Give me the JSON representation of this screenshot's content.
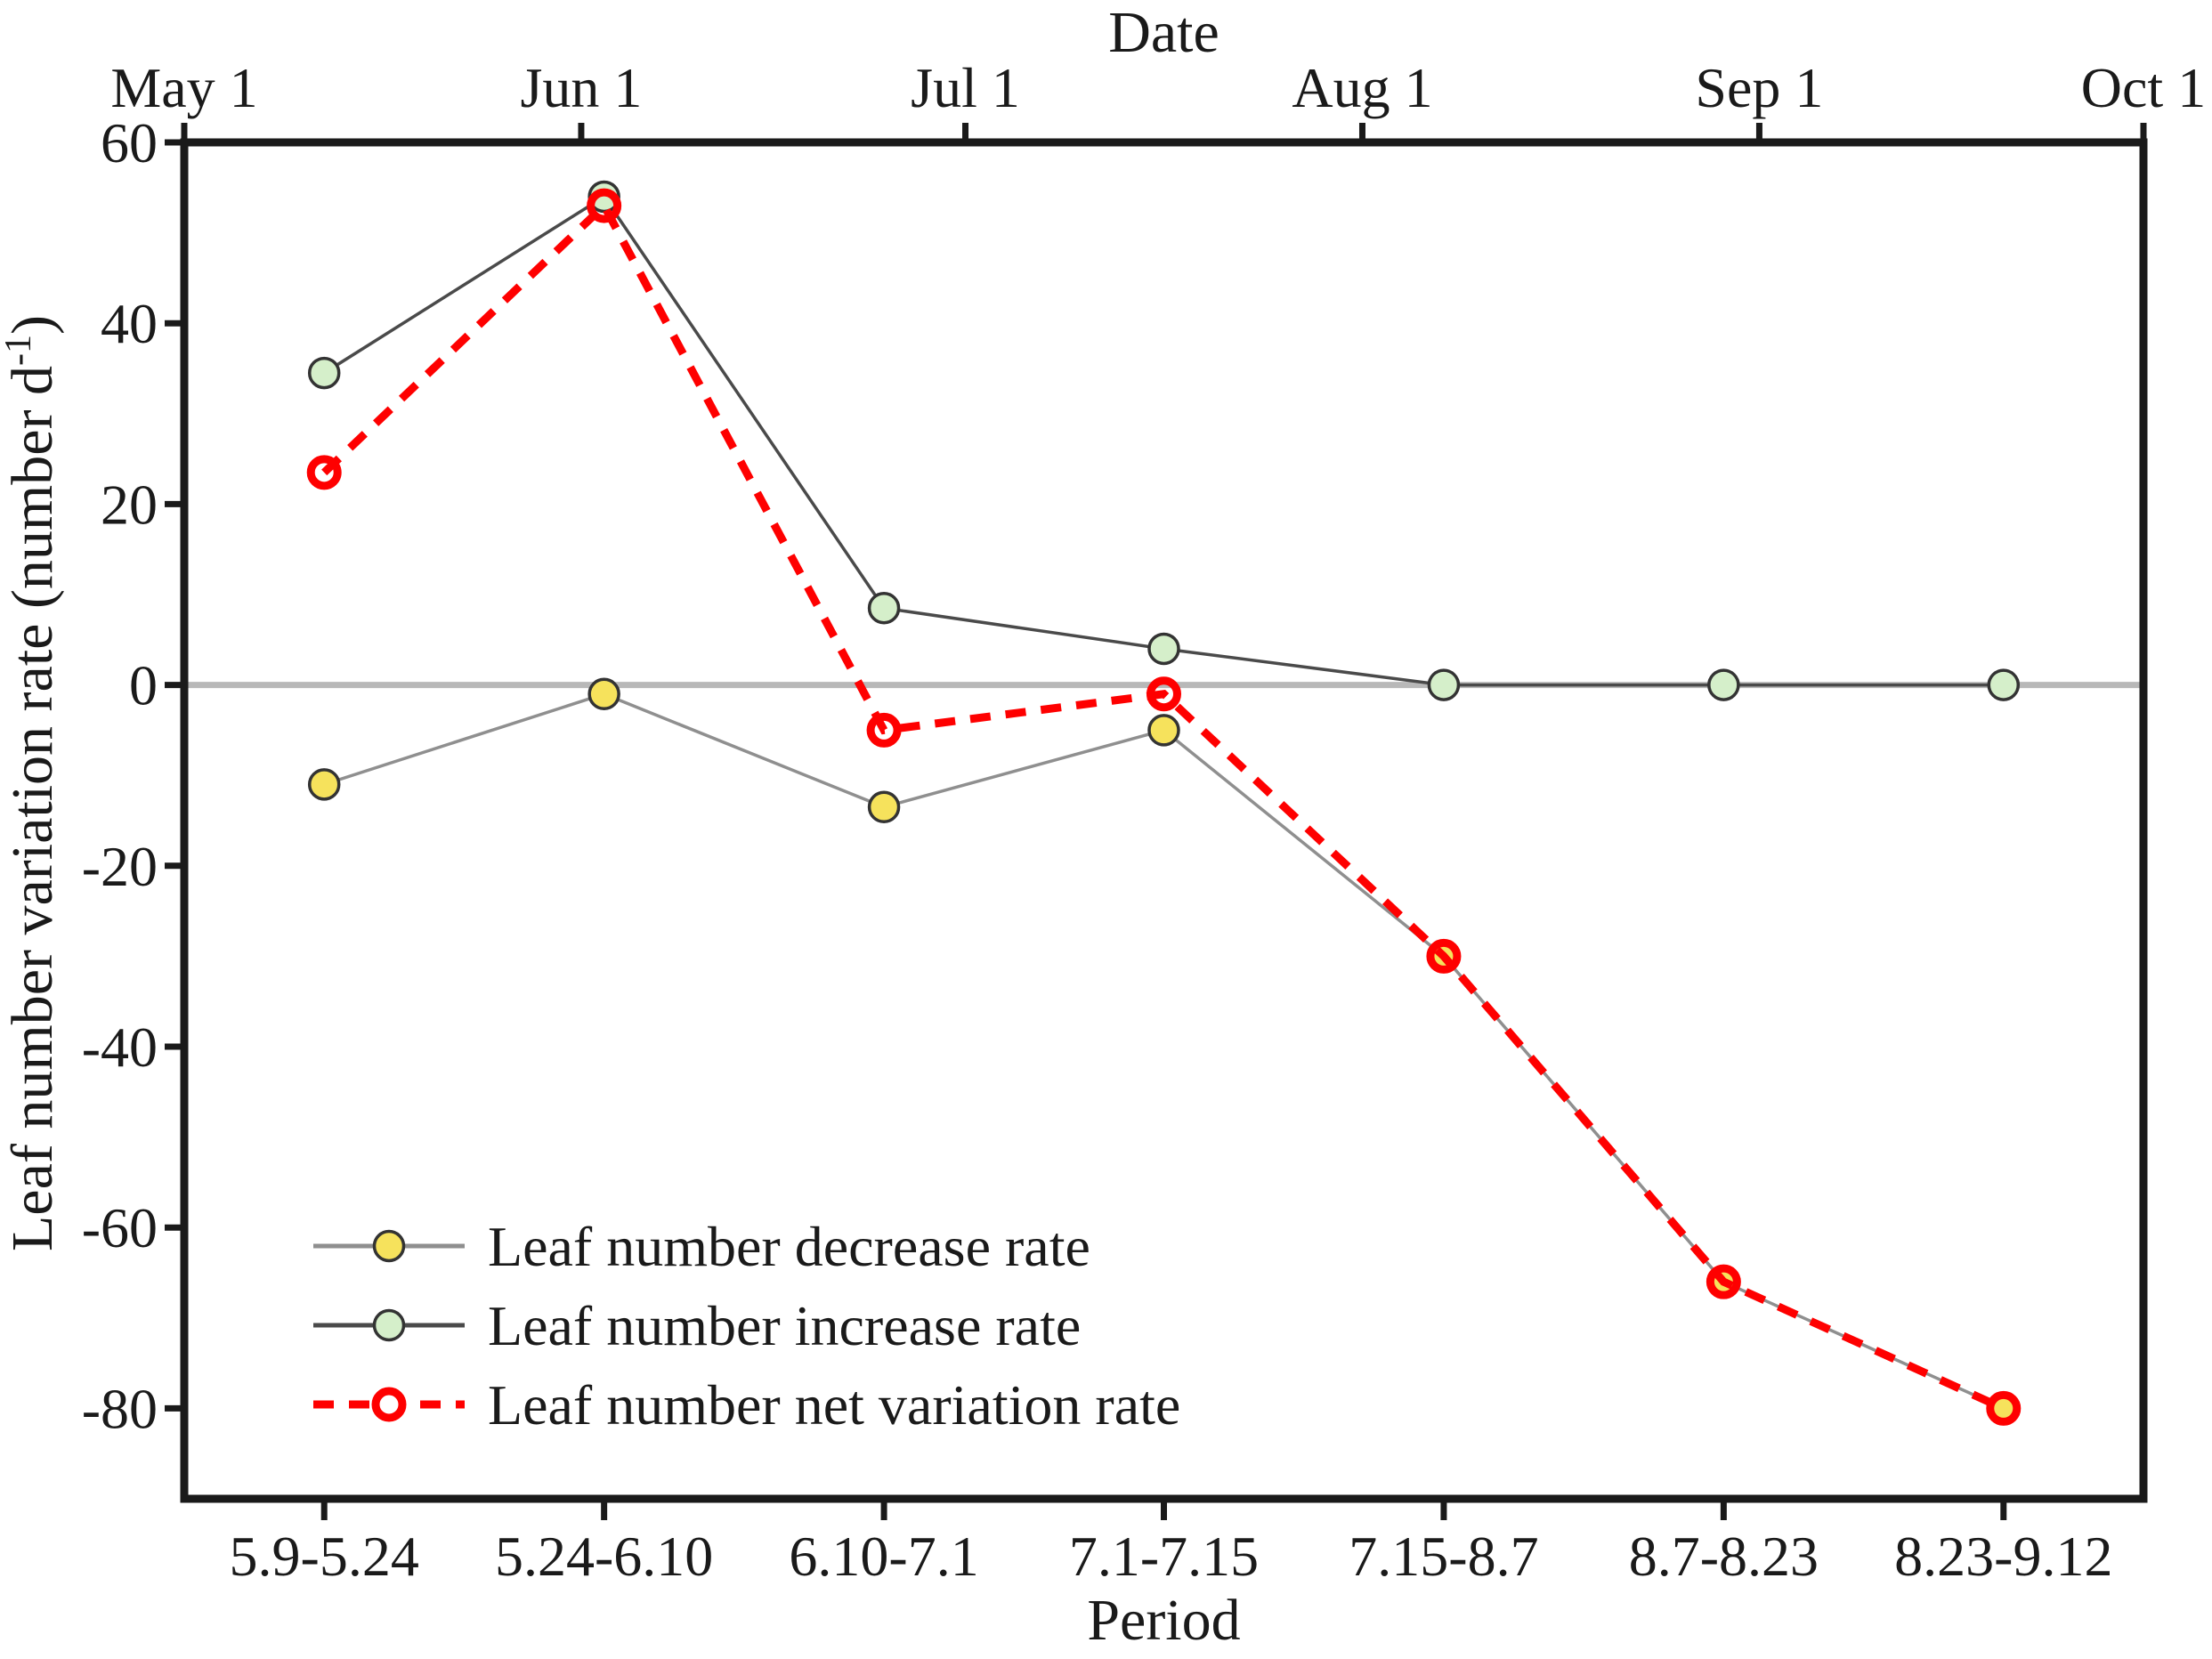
{
  "figure": {
    "background": "#ffffff",
    "top_axis": {
      "title": "Date",
      "tick_labels": [
        "May 1",
        "Jun 1",
        "Jul 1",
        "Aug 1",
        "Sep 1",
        "Oct 1"
      ],
      "tick_day_offsets": [
        0,
        31,
        61,
        92,
        123,
        153
      ],
      "total_days": 153
    },
    "bottom_axis": {
      "title": "Period"
    },
    "left_axis": {
      "ticks": [
        "60",
        "40",
        "20",
        "0",
        "-20",
        "-40",
        "-60",
        "-80"
      ],
      "tick_values": [
        60,
        40,
        20,
        0,
        -20,
        -40,
        -60,
        -80
      ],
      "title_base": "Leaf number variation rate (number d",
      "title_sup": "-1",
      "title_close": ")"
    },
    "colors": {
      "frame": "#1a1a1a",
      "zero_line": "#b8b8b8",
      "decrease_line": "#8f8f8f",
      "increase_line": "#4a4a4a",
      "net_line": "#fe0000",
      "decrease_marker_fill": "#f6e25c",
      "increase_marker_fill": "#d5efca",
      "marker_edge": "#333333",
      "net_marker_stroke": "#fe0000"
    }
  },
  "chart_data": {
    "type": "line",
    "categories": [
      "5.9-5.24",
      "5.24-6.10",
      "6.10-7.1",
      "7.1-7.15",
      "7.15-8.7",
      "8.7-8.23",
      "8.23-9.12"
    ],
    "series": [
      {
        "name": "Leaf number decrease rate",
        "values": [
          -11,
          -1,
          -13.5,
          -5,
          -30,
          -66,
          -80
        ],
        "marker": "filled-circle",
        "line_style": "solid"
      },
      {
        "name": "Leaf number increase rate",
        "values": [
          34.5,
          54,
          8.5,
          4,
          0,
          0,
          0
        ],
        "marker": "filled-circle",
        "line_style": "solid"
      },
      {
        "name": "Leaf number net variation rate",
        "values": [
          23.5,
          53,
          -5,
          -1,
          -30,
          -66,
          -80
        ],
        "marker": "open-circle",
        "line_style": "dashed"
      }
    ],
    "title": "",
    "xlabel": "Period",
    "ylabel": "Leaf number variation rate (number d-1)",
    "top_xlabel": "Date",
    "top_tick_labels": [
      "May 1",
      "Jun 1",
      "Jul 1",
      "Aug 1",
      "Sep 1",
      "Oct 1"
    ],
    "ylim": [
      -90,
      60
    ],
    "ytick_step": 20,
    "grid": "zero-line-only",
    "legend_position": "lower-left-inside"
  }
}
